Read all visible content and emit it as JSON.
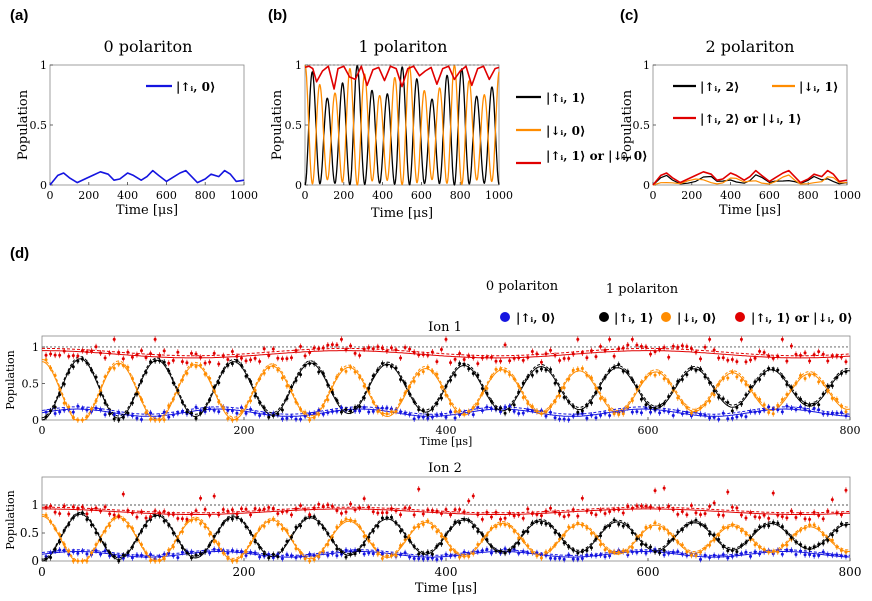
{
  "chart_data": {
    "panels": {
      "a": {
        "label": "(a)",
        "title": "0 polariton",
        "type": "line",
        "xlabel": "Time [μs]",
        "ylabel": "Population",
        "xlim": [
          0,
          1000
        ],
        "ylim": [
          0,
          1
        ],
        "xticks": [
          "0",
          "200",
          "400",
          "600",
          "800",
          "1000"
        ],
        "yticks": [
          "0",
          "0.5",
          "1"
        ],
        "series": [
          {
            "name": "|↑ᵢ, 0⟩",
            "color": "#1515e0",
            "x": [
              0,
              40,
              70,
              100,
              140,
              180,
              220,
              260,
              300,
              330,
              360,
              400,
              430,
              470,
              500,
              530,
              560,
              600,
              630,
              670,
              700,
              730,
              760,
              800,
              830,
              870,
              900,
              930,
              960,
              1000
            ],
            "values": [
              0,
              0.08,
              0.1,
              0.06,
              0.02,
              0.05,
              0.08,
              0.11,
              0.09,
              0.04,
              0.05,
              0.1,
              0.08,
              0.04,
              0.07,
              0.12,
              0.08,
              0.03,
              0.06,
              0.1,
              0.12,
              0.07,
              0.02,
              0.05,
              0.09,
              0.07,
              0.12,
              0.09,
              0.03,
              0.04
            ]
          }
        ]
      },
      "b": {
        "label": "(b)",
        "title": "1 polariton",
        "type": "line",
        "xlabel": "Time [μs]",
        "ylabel": "Population",
        "xlim": [
          0,
          1000
        ],
        "ylim": [
          0,
          1
        ],
        "xticks": [
          "0",
          "200",
          "400",
          "600",
          "800",
          "1000"
        ],
        "yticks": [
          "0",
          "0.5",
          "1"
        ],
        "series": [
          {
            "name": "|↑ᵢ, 1⟩",
            "color": "#000000",
            "period_us": 77,
            "phase": 0
          },
          {
            "name": "|↓ᵢ, 0⟩",
            "color": "#ff8c00",
            "period_us": 77,
            "phase": 0.5
          },
          {
            "name": "|↑ᵢ, 1⟩ or |↓ᵢ, 0⟩",
            "color": "#e00000",
            "x": [
              0,
              20,
              40,
              60,
              90,
              120,
              150,
              170,
              200,
              230,
              260,
              290,
              320,
              350,
              380,
              410,
              440,
              470,
              500,
              530,
              560,
              590,
              620,
              650,
              680,
              710,
              740,
              770,
              800,
              830,
              860,
              890,
              920,
              950,
              980,
              1000
            ],
            "values": [
              0.98,
              0.99,
              0.97,
              0.86,
              0.95,
              0.99,
              0.8,
              0.97,
              0.99,
              0.9,
              0.88,
              0.99,
              0.83,
              0.96,
              0.98,
              0.87,
              0.99,
              0.97,
              0.82,
              0.97,
              0.99,
              0.91,
              0.95,
              0.98,
              0.84,
              0.97,
              0.99,
              0.88,
              0.95,
              0.99,
              0.83,
              0.97,
              0.99,
              0.88,
              0.97,
              0.98
            ]
          }
        ]
      },
      "c": {
        "label": "(c)",
        "title": "2 polariton",
        "type": "line",
        "xlabel": "Time [μs]",
        "ylabel": "Population",
        "xlim": [
          0,
          1000
        ],
        "ylim": [
          0,
          1
        ],
        "xticks": [
          "0",
          "200",
          "400",
          "600",
          "800",
          "1000"
        ],
        "yticks": [
          "0",
          "0.5",
          "1"
        ],
        "series": [
          {
            "name": "|↑ᵢ, 2⟩",
            "color": "#000000"
          },
          {
            "name": "|↓ᵢ, 1⟩",
            "color": "#ff8c00"
          },
          {
            "name": "|↑ᵢ, 2⟩ or |↓ᵢ, 1⟩",
            "color": "#e00000",
            "x": [
              0,
              40,
              70,
              100,
              140,
              180,
              220,
              260,
              300,
              330,
              360,
              400,
              430,
              470,
              500,
              530,
              560,
              600,
              630,
              670,
              700,
              730,
              760,
              800,
              830,
              870,
              900,
              930,
              960,
              1000
            ],
            "values": [
              0,
              0.08,
              0.1,
              0.06,
              0.02,
              0.05,
              0.08,
              0.11,
              0.09,
              0.04,
              0.05,
              0.1,
              0.08,
              0.04,
              0.07,
              0.12,
              0.08,
              0.03,
              0.06,
              0.1,
              0.12,
              0.07,
              0.02,
              0.05,
              0.09,
              0.07,
              0.12,
              0.09,
              0.03,
              0.04
            ]
          }
        ]
      },
      "d": {
        "label": "(d)",
        "type": "scatter",
        "legend": {
          "group0_title": "0 polariton",
          "group1_title": "1 polariton",
          "entries": [
            {
              "name": "|↑ᵢ, 0⟩",
              "color": "#1515e0"
            },
            {
              "name": "|↑ᵢ, 1⟩",
              "color": "#000000"
            },
            {
              "name": "|↓ᵢ, 0⟩",
              "color": "#ff8c00"
            },
            {
              "name": "|↑ᵢ, 1⟩ or |↓ᵢ, 0⟩",
              "color": "#e00000"
            }
          ]
        },
        "subplots": [
          {
            "title": "Ion 1",
            "xlabel": "Time [μs]",
            "ylabel": "Population",
            "xlim": [
              0,
              800
            ],
            "ylim": [
              0,
              1.15
            ],
            "xticks": [
              "0",
              "200",
              "400",
              "600",
              "800"
            ],
            "yticks": [
              "0",
              "0.5",
              "1"
            ],
            "period_us": 76,
            "decay_us": 1400,
            "red_mean": 0.9,
            "blue_mean": 0.1
          },
          {
            "title": "Ion 2",
            "xlabel": "Time [μs]",
            "ylabel": "Population",
            "xlim": [
              0,
              800
            ],
            "ylim": [
              0,
              1.5
            ],
            "xticks": [
              "0",
              "200",
              "400",
              "600",
              "800"
            ],
            "yticks": [
              "0",
              "0.5",
              "1"
            ],
            "period_us": 76,
            "decay_us": 1200,
            "red_mean": 0.88,
            "blue_mean": 0.12
          }
        ]
      }
    }
  }
}
